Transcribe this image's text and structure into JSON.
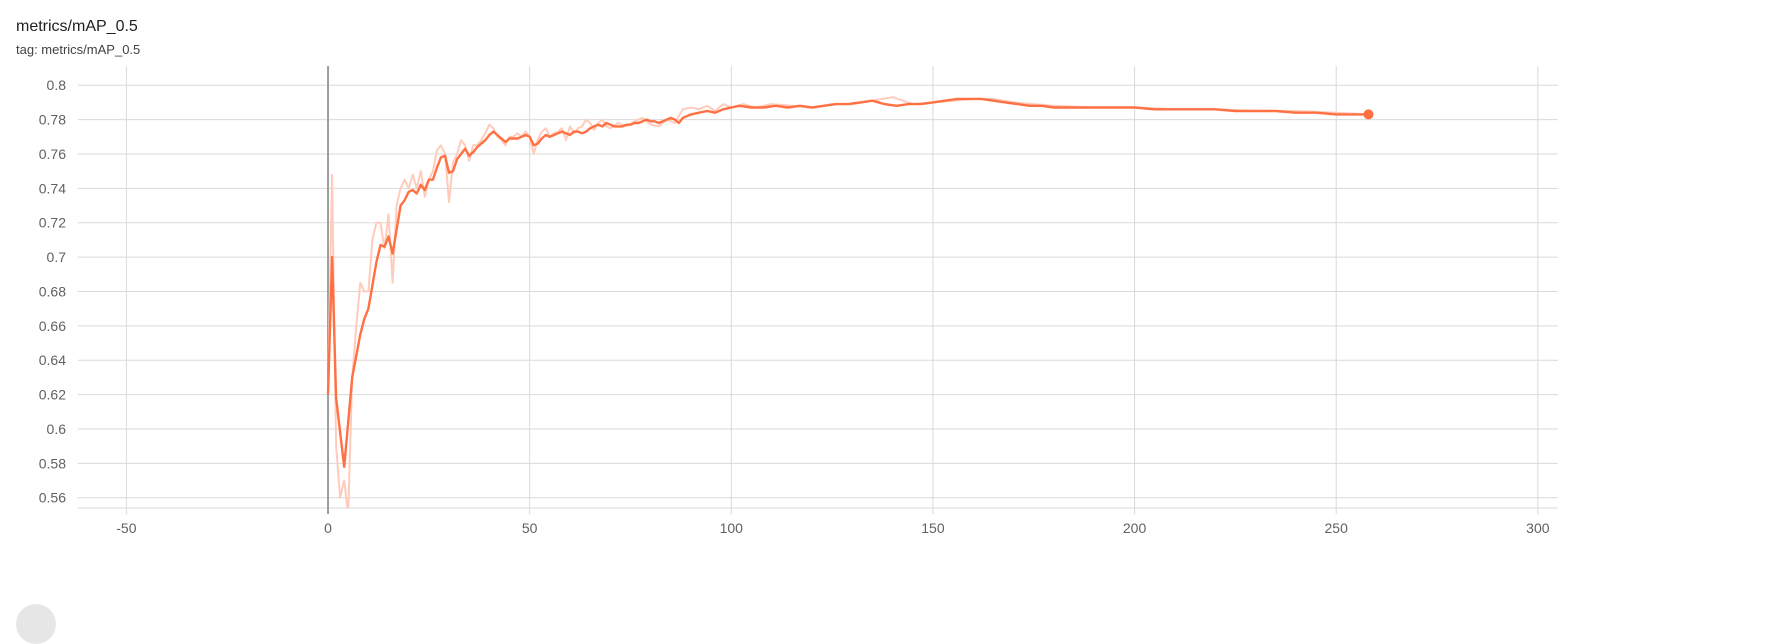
{
  "card": {
    "title": "metrics/mAP_0.5",
    "subtitle": "tag: metrics/mAP_0.5"
  },
  "colors": {
    "series": "#ff7043",
    "raw": "#ffccbc",
    "grid": "#d9d9d9",
    "zero_axis": "#9e9e9e"
  },
  "chart_data": {
    "type": "line",
    "title": "metrics/mAP_0.5",
    "xlim": [
      -62,
      305
    ],
    "ylim": [
      0.554,
      0.81
    ],
    "x_ticks": [
      -50,
      0,
      50,
      100,
      150,
      200,
      250,
      300
    ],
    "y_ticks": [
      0.56,
      0.58,
      0.6,
      0.62,
      0.64,
      0.66,
      0.68,
      0.7,
      0.72,
      0.74,
      0.76,
      0.78,
      0.8
    ],
    "grid": true,
    "series": [
      {
        "role": "smoothed",
        "x": [
          0,
          1,
          2,
          4,
          6,
          8,
          9,
          10,
          12,
          13,
          14,
          15,
          16,
          17,
          18,
          19,
          20,
          21,
          22,
          23,
          24,
          25,
          26,
          27,
          28,
          29,
          30,
          31,
          32,
          33,
          34,
          35,
          36,
          37,
          38,
          39,
          40,
          41,
          42,
          43,
          44,
          45,
          46,
          47,
          48,
          49,
          50,
          51,
          52,
          53,
          54,
          55,
          56,
          57,
          58,
          59,
          60,
          61,
          62,
          63,
          64,
          65,
          66,
          67,
          68,
          69,
          70,
          71,
          72,
          73,
          74,
          75,
          76,
          77,
          78,
          79,
          80,
          81,
          82,
          83,
          84,
          85,
          86,
          87,
          88,
          89,
          90,
          92,
          94,
          96,
          98,
          100,
          102,
          105,
          108,
          111,
          114,
          117,
          120,
          123,
          126,
          129,
          132,
          135,
          138,
          141,
          144,
          147,
          150,
          153,
          156,
          159,
          162,
          165,
          168,
          171,
          174,
          177,
          180,
          185,
          190,
          195,
          200,
          205,
          210,
          215,
          220,
          225,
          230,
          235,
          240,
          245,
          250,
          255,
          258
        ],
        "y": [
          0.62,
          0.7,
          0.618,
          0.578,
          0.63,
          0.655,
          0.664,
          0.67,
          0.697,
          0.707,
          0.706,
          0.712,
          0.702,
          0.716,
          0.73,
          0.733,
          0.738,
          0.739,
          0.737,
          0.742,
          0.739,
          0.745,
          0.745,
          0.752,
          0.758,
          0.759,
          0.749,
          0.75,
          0.757,
          0.76,
          0.763,
          0.759,
          0.761,
          0.764,
          0.766,
          0.768,
          0.771,
          0.773,
          0.771,
          0.769,
          0.767,
          0.769,
          0.769,
          0.769,
          0.77,
          0.771,
          0.77,
          0.765,
          0.766,
          0.769,
          0.771,
          0.77,
          0.771,
          0.772,
          0.773,
          0.772,
          0.771,
          0.773,
          0.773,
          0.772,
          0.773,
          0.775,
          0.776,
          0.777,
          0.776,
          0.778,
          0.777,
          0.776,
          0.776,
          0.776,
          0.777,
          0.777,
          0.778,
          0.778,
          0.779,
          0.78,
          0.779,
          0.779,
          0.778,
          0.779,
          0.78,
          0.781,
          0.78,
          0.778,
          0.781,
          0.782,
          0.783,
          0.784,
          0.785,
          0.784,
          0.786,
          0.787,
          0.788,
          0.787,
          0.787,
          0.788,
          0.787,
          0.788,
          0.787,
          0.788,
          0.789,
          0.789,
          0.79,
          0.791,
          0.789,
          0.788,
          0.789,
          0.789,
          0.79,
          0.791,
          0.792,
          0.792,
          0.792,
          0.791,
          0.79,
          0.789,
          0.788,
          0.788,
          0.787,
          0.787,
          0.787,
          0.787,
          0.787,
          0.786,
          0.786,
          0.786,
          0.786,
          0.785,
          0.785,
          0.785,
          0.784,
          0.784,
          0.783,
          0.783,
          0.783
        ]
      },
      {
        "role": "raw",
        "x": [
          0,
          1,
          2,
          3,
          4,
          5,
          6,
          7,
          8,
          9,
          10,
          11,
          12,
          13,
          14,
          15,
          16,
          17,
          18,
          19,
          20,
          21,
          22,
          23,
          24,
          25,
          26,
          27,
          28,
          29,
          30,
          31,
          32,
          33,
          34,
          35,
          36,
          37,
          38,
          39,
          40,
          41,
          42,
          43,
          44,
          45,
          46,
          47,
          48,
          49,
          50,
          51,
          52,
          53,
          54,
          55,
          56,
          57,
          58,
          59,
          60,
          61,
          62,
          63,
          64,
          65,
          66,
          67,
          68,
          69,
          70,
          72,
          74,
          76,
          78,
          80,
          82,
          84,
          86,
          88,
          90,
          92,
          94,
          96,
          98,
          100,
          103,
          106,
          110,
          115,
          120,
          125,
          130,
          135,
          140,
          145,
          150,
          155,
          160,
          165,
          170,
          175,
          180,
          190,
          200,
          210,
          220,
          230,
          240,
          250,
          258
        ],
        "y": [
          0.62,
          0.748,
          0.59,
          0.56,
          0.57,
          0.55,
          0.63,
          0.66,
          0.685,
          0.68,
          0.68,
          0.71,
          0.72,
          0.72,
          0.705,
          0.725,
          0.685,
          0.73,
          0.74,
          0.745,
          0.74,
          0.748,
          0.74,
          0.75,
          0.735,
          0.745,
          0.75,
          0.762,
          0.765,
          0.76,
          0.732,
          0.755,
          0.76,
          0.768,
          0.765,
          0.756,
          0.765,
          0.765,
          0.768,
          0.772,
          0.777,
          0.775,
          0.77,
          0.768,
          0.765,
          0.77,
          0.77,
          0.772,
          0.77,
          0.773,
          0.77,
          0.76,
          0.768,
          0.773,
          0.775,
          0.77,
          0.772,
          0.773,
          0.775,
          0.768,
          0.776,
          0.772,
          0.775,
          0.776,
          0.78,
          0.778,
          0.774,
          0.778,
          0.78,
          0.776,
          0.775,
          0.778,
          0.776,
          0.779,
          0.781,
          0.777,
          0.776,
          0.78,
          0.778,
          0.786,
          0.787,
          0.786,
          0.788,
          0.785,
          0.789,
          0.787,
          0.789,
          0.787,
          0.789,
          0.788,
          0.787,
          0.789,
          0.789,
          0.791,
          0.793,
          0.789,
          0.79,
          0.791,
          0.792,
          0.792,
          0.79,
          0.789,
          0.788,
          0.787,
          0.787,
          0.786,
          0.786,
          0.785,
          0.785,
          0.784,
          0.783
        ]
      }
    ]
  }
}
